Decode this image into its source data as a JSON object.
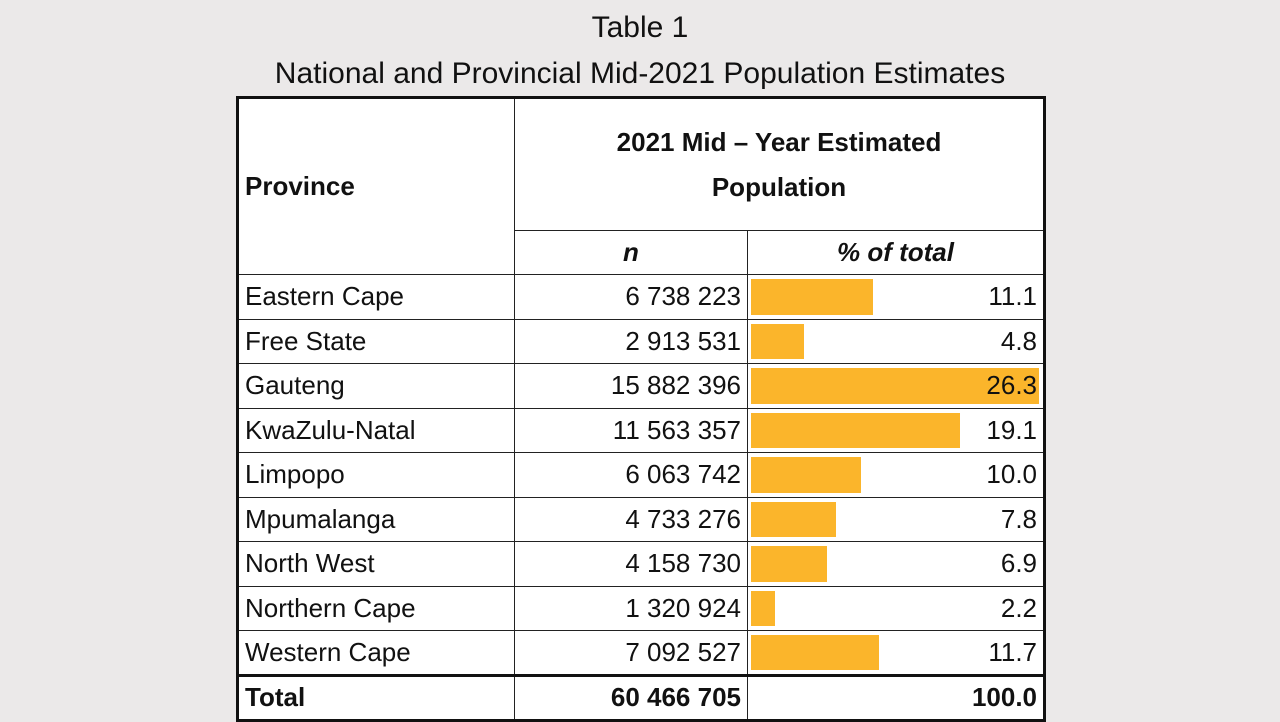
{
  "title_line1": "Table 1",
  "title_line2": "National and Provincial Mid-2021 Population Estimates",
  "table": {
    "province_header": "Province",
    "estimate_header_line1": "2021 Mid – Year Estimated",
    "estimate_header_line2": "Population",
    "col_n": "n",
    "col_pct": "% of total",
    "rows": [
      {
        "province": "Eastern Cape",
        "n": "6 738 223",
        "pct": "11.1"
      },
      {
        "province": "Free State",
        "n": "2 913 531",
        "pct": "4.8"
      },
      {
        "province": "Gauteng",
        "n": "15 882 396",
        "pct": "26.3"
      },
      {
        "province": "KwaZulu-Natal",
        "n": "11 563 357",
        "pct": "19.1"
      },
      {
        "province": "Limpopo",
        "n": "6 063 742",
        "pct": "10.0"
      },
      {
        "province": "Mpumalanga",
        "n": "4 733 276",
        "pct": "7.8"
      },
      {
        "province": "North West",
        "n": "4 158 730",
        "pct": "6.9"
      },
      {
        "province": "Northern Cape",
        "n": "1 320 924",
        "pct": "2.2"
      },
      {
        "province": "Western Cape",
        "n": "7 092 527",
        "pct": "11.7"
      }
    ],
    "total": {
      "label": "Total",
      "n": "60 466 705",
      "pct": "100.0"
    }
  },
  "colors": {
    "bar": "#fbb52b",
    "background": "#ebe9e9"
  }
}
